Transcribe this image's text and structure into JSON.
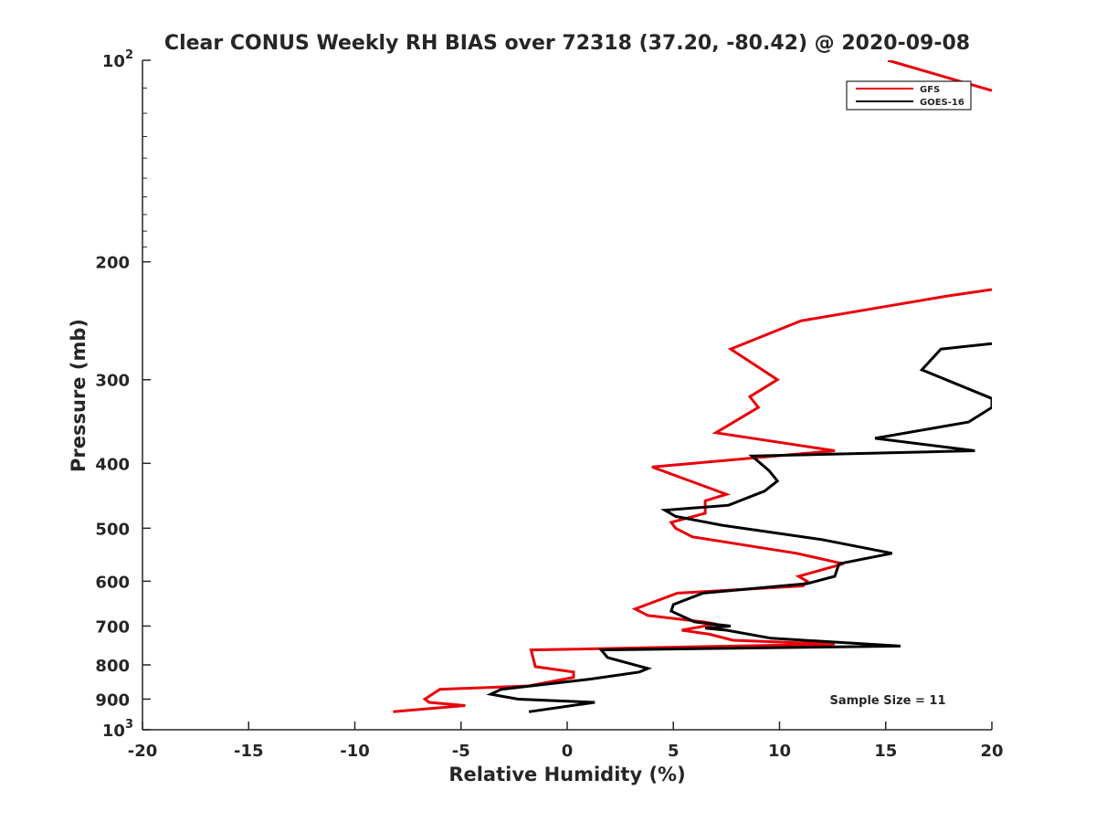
{
  "chart_data": {
    "type": "line",
    "title": "Clear CONUS Weekly RH BIAS over 72318 (37.20, -80.42) @ 2020-09-08",
    "xlabel": "Relative Humidity (%)",
    "ylabel": "Pressure (mb)",
    "xlim": [
      -20,
      20
    ],
    "ylim": [
      100,
      1000
    ],
    "y_scale": "log",
    "y_reversed": true,
    "grid": false,
    "legend_position": "top-right",
    "x_ticks": [
      "-20",
      "-15",
      "-10",
      "-5",
      "0",
      "5",
      "10",
      "15",
      "20"
    ],
    "y_ticks": [
      {
        "value": 100,
        "base": "10",
        "exp": "2"
      },
      {
        "value": 200,
        "label": "200"
      },
      {
        "value": 300,
        "label": "300"
      },
      {
        "value": 400,
        "label": "400"
      },
      {
        "value": 500,
        "label": "500"
      },
      {
        "value": 600,
        "label": "600"
      },
      {
        "value": 700,
        "label": "700"
      },
      {
        "value": 800,
        "label": "800"
      },
      {
        "value": 900,
        "label": "900"
      },
      {
        "value": 1000,
        "base": "10",
        "exp": "3"
      }
    ],
    "annotation": "Sample Size = 11",
    "colors": {
      "GFS": "#e8000b",
      "GOES-16": "#000000",
      "axis": "#262626"
    },
    "series": [
      {
        "name": "GFS",
        "color": "#e8000b",
        "x": [
          -8.2,
          -4.8,
          -6.5,
          -6.7,
          -6.0,
          -1.8,
          0.3,
          0.3,
          -1.5,
          -1.7,
          12.6,
          7.8,
          6.7,
          5.4,
          7.0,
          6.4,
          3.8,
          3.2,
          5.2,
          11.1,
          11.3,
          10.9,
          13.0,
          10.8,
          5.9,
          5.1,
          4.9,
          6.5,
          6.5,
          7.5,
          4.0,
          12.6,
          7.0,
          9.0,
          8.6,
          9.9,
          7.7,
          11.0,
          17.9,
          20.0
        ],
        "y": [
          940,
          920,
          910,
          900,
          870,
          860,
          835,
          820,
          805,
          760,
          745,
          735,
          720,
          710,
          695,
          690,
          675,
          660,
          625,
          610,
          600,
          590,
          565,
          545,
          515,
          500,
          490,
          475,
          455,
          445,
          405,
          383,
          360,
          330,
          318,
          300,
          270,
          245,
          225,
          220
        ]
      },
      {
        "name": "GFS",
        "color": "#e8000b",
        "x": [
          15.1,
          20.0
        ],
        "y": [
          100,
          111
        ]
      },
      {
        "name": "GOES-16",
        "color": "#000000",
        "x": [
          -1.8,
          1.3,
          -2.3,
          -3.6,
          -3.1,
          1.1,
          3.4,
          3.8,
          1.9,
          1.6,
          15.7,
          9.6,
          7.5,
          6.5,
          7.7,
          6.0,
          4.9,
          5.0,
          6.4,
          11.3,
          12.6,
          12.8,
          15.3,
          12.0,
          7.3,
          5.1,
          4.6,
          7.6,
          9.3,
          9.9,
          9.5,
          8.7,
          19.2,
          14.5,
          18.9,
          20.0,
          20.0,
          16.7,
          17.6,
          20.0
        ],
        "y": [
          940,
          910,
          900,
          885,
          870,
          840,
          820,
          810,
          780,
          760,
          750,
          730,
          710,
          705,
          700,
          690,
          665,
          650,
          625,
          605,
          590,
          565,
          545,
          520,
          495,
          480,
          470,
          462,
          440,
          425,
          410,
          390,
          383,
          367,
          347,
          330,
          320,
          290,
          270,
          265
        ]
      }
    ]
  }
}
